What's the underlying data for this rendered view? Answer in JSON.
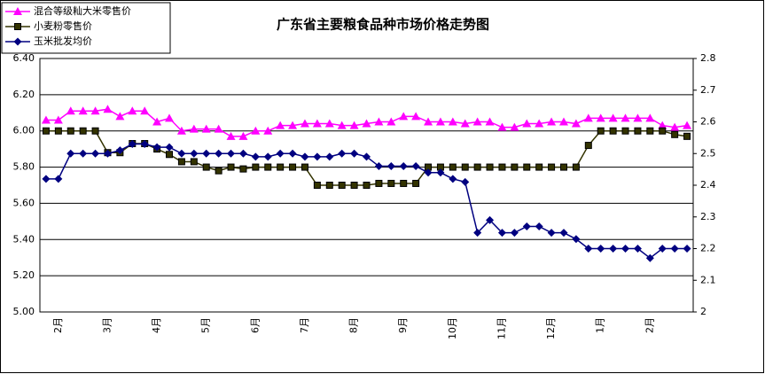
{
  "chart_data": {
    "type": "line",
    "title": "广东省主要粮食品种市场价格走势图",
    "categories": [
      null,
      "2月",
      null,
      null,
      null,
      "3月",
      null,
      null,
      null,
      "4月",
      null,
      null,
      null,
      "5月",
      null,
      null,
      null,
      "6月",
      null,
      null,
      null,
      "7月",
      null,
      null,
      null,
      "8月",
      null,
      null,
      null,
      "9月",
      null,
      null,
      null,
      "10月",
      null,
      null,
      null,
      "11月",
      null,
      null,
      null,
      "12月",
      null,
      null,
      null,
      "1月",
      null,
      null,
      null,
      "2月",
      null,
      null,
      null
    ],
    "series": [
      {
        "name": "混合等级籼大米零售价",
        "color": "#ff00ff",
        "marker": "triangle",
        "values": [
          6.06,
          6.06,
          6.11,
          6.11,
          6.11,
          6.12,
          6.08,
          6.11,
          6.11,
          6.05,
          6.07,
          6.0,
          6.01,
          6.01,
          6.01,
          5.97,
          5.97,
          6.0,
          6.0,
          6.03,
          6.03,
          6.04,
          6.04,
          6.04,
          6.03,
          6.03,
          6.04,
          6.05,
          6.05,
          6.08,
          6.08,
          6.05,
          6.05,
          6.05,
          6.04,
          6.05,
          6.05,
          6.02,
          6.02,
          6.04,
          6.04,
          6.05,
          6.05,
          6.04,
          6.07,
          6.07,
          6.07,
          6.07,
          6.07,
          6.07,
          6.03,
          6.02,
          6.03
        ]
      },
      {
        "name": "小麦粉零售价",
        "color": "#333300",
        "marker": "square",
        "values": [
          6.0,
          6.0,
          6.0,
          6.0,
          6.0,
          5.88,
          5.88,
          5.93,
          5.93,
          5.9,
          5.87,
          5.83,
          5.83,
          5.8,
          5.78,
          5.8,
          5.79,
          5.8,
          5.8,
          5.8,
          5.8,
          5.8,
          5.7,
          5.7,
          5.7,
          5.7,
          5.7,
          5.71,
          5.71,
          5.71,
          5.71,
          5.8,
          5.8,
          5.8,
          5.8,
          5.8,
          5.8,
          5.8,
          5.8,
          5.8,
          5.8,
          5.8,
          5.8,
          5.8,
          5.92,
          6.0,
          6.0,
          6.0,
          6.0,
          6.0,
          6.0,
          5.98,
          5.97
        ]
      },
      {
        "name": "玉米批发均价",
        "color": "#000080",
        "marker": "diamond",
        "axis": "y2",
        "values": [
          2.42,
          2.42,
          2.5,
          2.5,
          2.5,
          2.5,
          2.51,
          2.53,
          2.53,
          2.52,
          2.52,
          2.5,
          2.5,
          2.5,
          2.5,
          2.5,
          2.5,
          2.49,
          2.49,
          2.5,
          2.5,
          2.49,
          2.49,
          2.49,
          2.5,
          2.5,
          2.49,
          2.46,
          2.46,
          2.46,
          2.46,
          2.44,
          2.44,
          2.42,
          2.41,
          2.25,
          2.29,
          2.25,
          2.25,
          2.27,
          2.27,
          2.25,
          2.25,
          2.23,
          2.2,
          2.2,
          2.2,
          2.2,
          2.2,
          2.17,
          2.2,
          2.2,
          2.2
        ]
      }
    ],
    "ylim": [
      5.0,
      6.4
    ],
    "yticks": [
      {
        "value": 5.0,
        "label": "5.00"
      },
      {
        "value": 5.2,
        "label": "5.20"
      },
      {
        "value": 5.4,
        "label": "5.40"
      },
      {
        "value": 5.6,
        "label": "5.60"
      },
      {
        "value": 5.8,
        "label": "5.80"
      },
      {
        "value": 6.0,
        "label": "6.00"
      },
      {
        "value": 6.2,
        "label": "6.20"
      },
      {
        "value": 6.4,
        "label": "6.40"
      }
    ],
    "y2lim": [
      2,
      2.8
    ],
    "y2ticks": [
      2,
      2.1,
      2.2,
      2.3,
      2.4,
      2.5,
      2.6,
      2.7,
      2.8
    ],
    "grid": true,
    "legend": "top-left"
  }
}
